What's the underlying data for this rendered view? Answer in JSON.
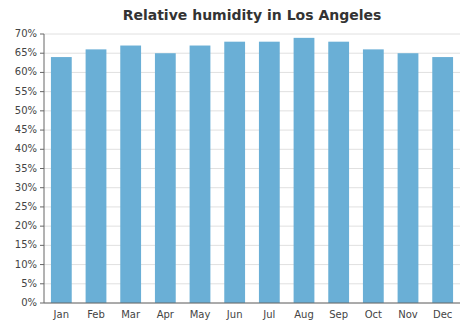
{
  "chart_data": {
    "type": "bar",
    "title": "Relative humidity in Los Angeles",
    "categories": [
      "Jan",
      "Feb",
      "Mar",
      "Apr",
      "May",
      "Jun",
      "Jul",
      "Aug",
      "Sep",
      "Oct",
      "Nov",
      "Dec"
    ],
    "values": [
      64,
      66,
      67,
      65,
      67,
      68,
      68,
      69,
      68,
      66,
      65,
      64
    ],
    "color": "#6aafd6",
    "ylim": [
      0,
      70
    ],
    "yticks": [
      {
        "value": 0,
        "label": "0%"
      },
      {
        "value": 5,
        "label": "5%"
      },
      {
        "value": 10,
        "label": "10%"
      },
      {
        "value": 15,
        "label": "15%"
      },
      {
        "value": 20,
        "label": "20%"
      },
      {
        "value": 25,
        "label": "25%"
      },
      {
        "value": 30,
        "label": "30%"
      },
      {
        "value": 35,
        "label": "35%"
      },
      {
        "value": 40,
        "label": "40%"
      },
      {
        "value": 45,
        "label": "45%"
      },
      {
        "value": 50,
        "label": "50%"
      },
      {
        "value": 55,
        "label": "55%"
      },
      {
        "value": 60,
        "label": "60%"
      },
      {
        "value": 65,
        "label": "65%"
      },
      {
        "value": 70,
        "label": "70%"
      }
    ],
    "grid": true
  }
}
